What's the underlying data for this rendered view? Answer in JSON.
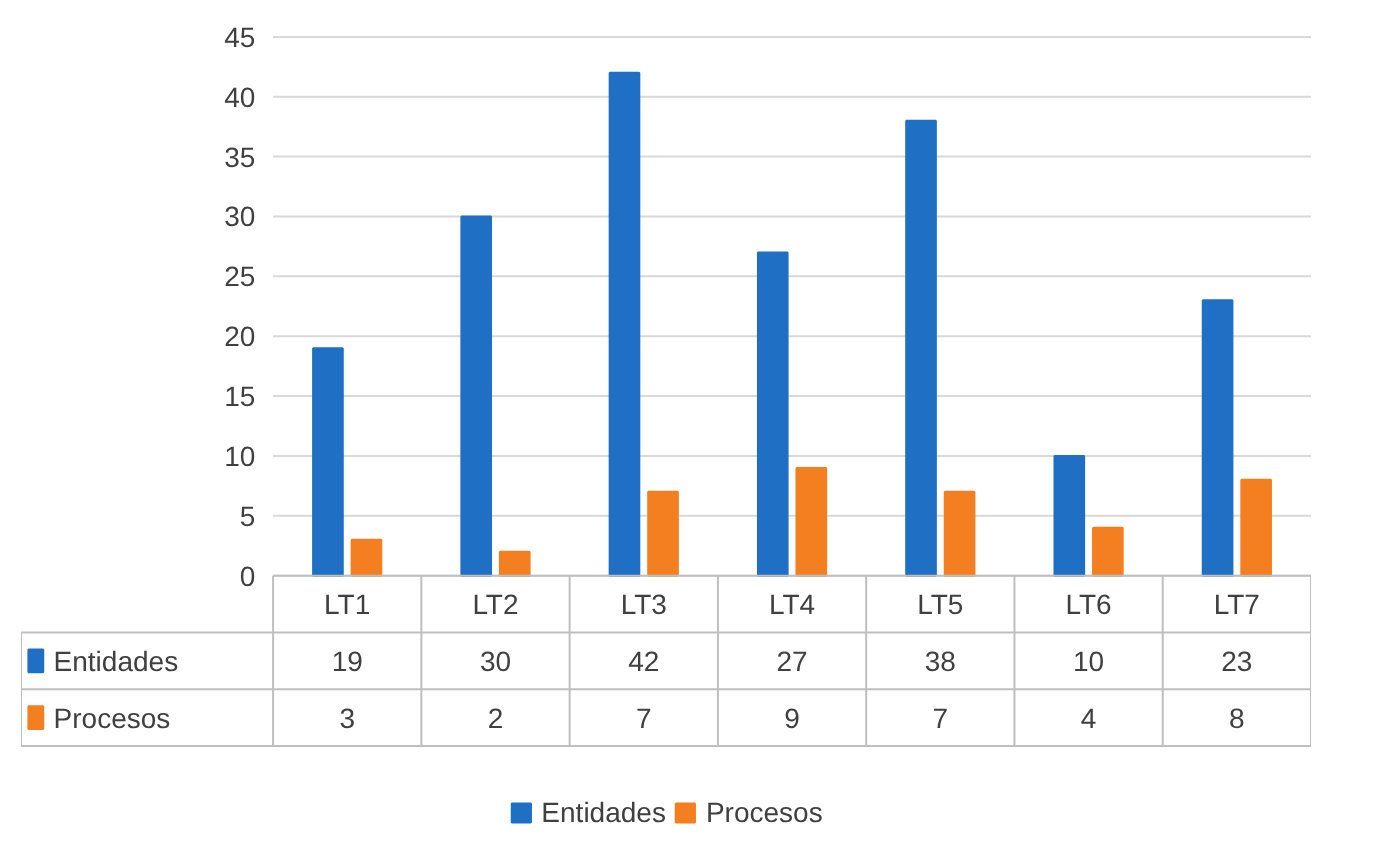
{
  "chart_data": {
    "type": "bar",
    "categories": [
      "LT1",
      "LT2",
      "LT3",
      "LT4",
      "LT5",
      "LT6",
      "LT7"
    ],
    "series": [
      {
        "name": "Entidades",
        "color": "#1f6fc5",
        "values": [
          19,
          30,
          42,
          27,
          38,
          10,
          23
        ]
      },
      {
        "name": "Procesos",
        "color": "#f47f20",
        "values": [
          3,
          2,
          7,
          9,
          7,
          4,
          8
        ]
      }
    ],
    "ylim": [
      0,
      45
    ],
    "yticks": [
      0,
      5,
      10,
      15,
      20,
      25,
      30,
      35,
      40,
      45
    ],
    "grid": "y",
    "legend": "bottom",
    "data_labels": true
  }
}
